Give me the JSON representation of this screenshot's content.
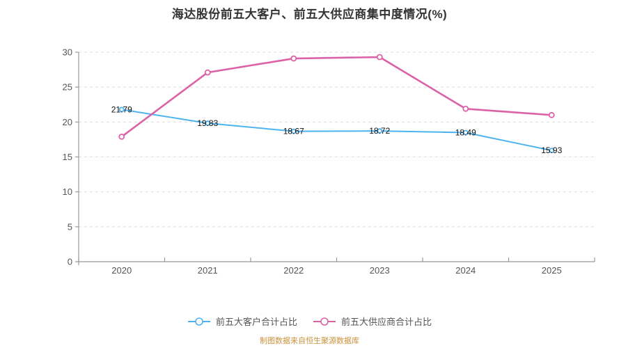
{
  "title": "海达股份前五大客户、前五大供应商集中度情况(%)",
  "footer_note": "制图数据来自恒生聚源数据库",
  "colors": {
    "title_text": "#333333",
    "axis_line": "#999999",
    "tick_label": "#555555",
    "grid_line": "#dcdcdc",
    "data_label": "#111111",
    "legend_text": "#555555",
    "footer_text": "#c9923b",
    "background": "#ffffff",
    "customer_series": "#4eb3f0",
    "supplier_series": "#db62a7"
  },
  "chart_data": {
    "type": "line",
    "title": "海达股份前五大客户、前五大供应商集中度情况(%)",
    "categories": [
      "2020",
      "2021",
      "2022",
      "2023",
      "2024",
      "2025"
    ],
    "series": [
      {
        "name": "前五大客户合计占比",
        "color": "#4eb3f0",
        "values": [
          21.79,
          19.83,
          18.67,
          18.72,
          18.49,
          15.93
        ],
        "point_labels": [
          "21.79",
          "19.83",
          "18.67",
          "18.72",
          "18.49",
          "15.93"
        ],
        "show_point_labels": true
      },
      {
        "name": "前五大供应商合计占比",
        "color": "#db62a7",
        "values": [
          17.9,
          27.1,
          29.1,
          29.3,
          21.9,
          21.0
        ],
        "point_labels": [],
        "show_point_labels": false
      }
    ],
    "ylim": [
      0,
      30
    ],
    "yticks": [
      0,
      5,
      10,
      15,
      20,
      25,
      30
    ],
    "xlabel": "",
    "ylabel": "",
    "grid": "horizontal-dashed",
    "legend_position": "bottom",
    "marker": "hollow-circle"
  }
}
